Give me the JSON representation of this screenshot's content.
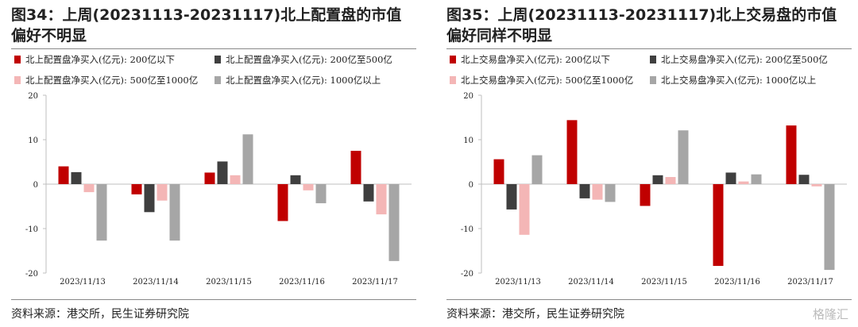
{
  "colors": {
    "s1": "#c00000",
    "s2": "#3f3f3f",
    "s3": "#f4b6b6",
    "s4": "#a6a6a6"
  },
  "watermark": "格隆汇",
  "chart_data": [
    {
      "type": "bar",
      "title": "图34：上周(20231113-20231117)北上配置盘的市值偏好不明显",
      "source": "资料来源：港交所，民生证券研究院",
      "categories": [
        "2023/11/13",
        "2023/11/14",
        "2023/11/15",
        "2023/11/16",
        "2023/11/17"
      ],
      "ylim": [
        -20,
        20
      ],
      "yticks": [
        -20,
        -10,
        0,
        10,
        20
      ],
      "legend_position": "top",
      "grid": false,
      "series": [
        {
          "name": "北上配置盘净买入(亿元): 200亿以下",
          "values": [
            4.0,
            -2.3,
            2.6,
            -8.3,
            7.5
          ]
        },
        {
          "name": "北上配置盘净买入(亿元): 200亿至500亿",
          "values": [
            2.7,
            -6.3,
            5.1,
            2.0,
            -3.9
          ]
        },
        {
          "name": "北上配置盘净买入(亿元): 500亿至1000亿",
          "values": [
            -1.8,
            -3.7,
            2.0,
            -1.4,
            -6.8
          ]
        },
        {
          "name": "北上配置盘净买入(亿元): 1000亿以上",
          "values": [
            -12.7,
            -12.7,
            11.2,
            -4.3,
            -17.3
          ]
        }
      ]
    },
    {
      "type": "bar",
      "title": "图35：上周(20231113-20231117)北上交易盘的市值偏好同样不明显",
      "source": "资料来源：港交所，民生证券研究院",
      "categories": [
        "2023/11/13",
        "2023/11/14",
        "2023/11/15",
        "2023/11/16",
        "2023/11/17"
      ],
      "ylim": [
        -20,
        20
      ],
      "yticks": [
        -20,
        -10,
        0,
        10,
        20
      ],
      "legend_position": "top",
      "grid": false,
      "series": [
        {
          "name": "北上交易盘净买入(亿元): 200亿以下",
          "values": [
            5.6,
            14.4,
            -4.9,
            -18.4,
            13.2
          ]
        },
        {
          "name": "北上交易盘净买入(亿元): 200亿至500亿",
          "values": [
            -5.7,
            -3.2,
            2.0,
            2.6,
            2.1
          ]
        },
        {
          "name": "北上交易盘净买入(亿元): 500亿至1000亿",
          "values": [
            -11.4,
            -3.5,
            1.6,
            0.6,
            -0.5
          ]
        },
        {
          "name": "北上交易盘净买入(亿元): 1000亿以上",
          "values": [
            6.5,
            -4.0,
            12.1,
            2.2,
            -19.3
          ]
        }
      ]
    }
  ]
}
